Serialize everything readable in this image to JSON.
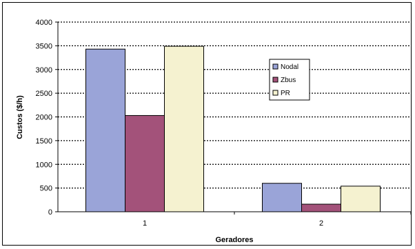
{
  "chart_data": {
    "type": "bar",
    "categories": [
      "1",
      "2"
    ],
    "series": [
      {
        "name": "Nodal",
        "values": [
          3430,
          600
        ],
        "color": "#9aa4d8"
      },
      {
        "name": "Zbus",
        "values": [
          2030,
          160
        ],
        "color": "#a3527a"
      },
      {
        "name": "PR",
        "values": [
          3490,
          540
        ],
        "color": "#f5f2d0"
      }
    ],
    "xlabel": "Geradores",
    "ylabel": "Custos ($/h)",
    "ylim": [
      0,
      4000
    ],
    "yticks": [
      "0",
      "500",
      "1000",
      "1500",
      "2000",
      "2500",
      "3000",
      "3500",
      "4000"
    ],
    "grid": true,
    "legend": "right"
  }
}
